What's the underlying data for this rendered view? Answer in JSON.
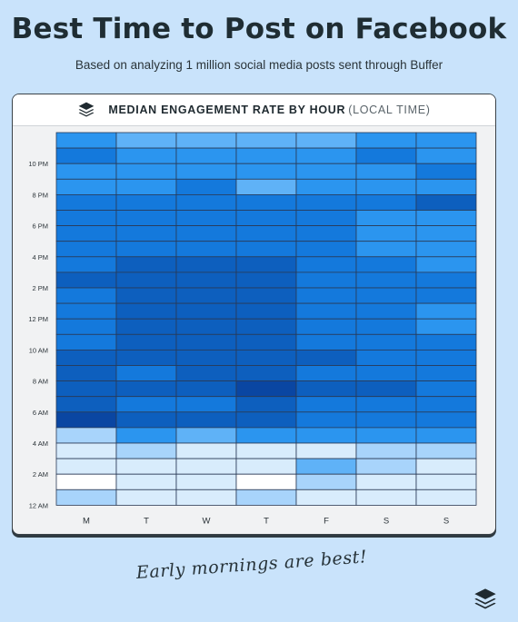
{
  "header": {
    "title": "Best Time to Post on Facebook",
    "subtitle": "Based on analyzing 1 million social media posts sent through Buffer"
  },
  "card": {
    "logo_icon": "buffer-stack-icon",
    "title_main": "MEDIAN ENGAGEMENT RATE BY HOUR",
    "title_sub": "(LOCAL TIME)"
  },
  "footer": {
    "caption": "Early mornings are best!",
    "logo_icon": "buffer-stack-icon"
  },
  "colors": {
    "background": "#c9e3fb",
    "scale": [
      "#ffffff",
      "#d8ecfc",
      "#a8d4fb",
      "#5fb2f7",
      "#2b95ef",
      "#1479dc",
      "#0d5fbe",
      "#0a46a2"
    ]
  },
  "chart_data": {
    "type": "heatmap",
    "title": "MEDIAN ENGAGEMENT RATE BY HOUR (LOCAL TIME)",
    "x_labels": [
      "M",
      "T",
      "W",
      "T",
      "F",
      "S",
      "S"
    ],
    "y_tick_labels": [
      {
        "hour": 22,
        "label": "10 PM"
      },
      {
        "hour": 20,
        "label": "8 PM"
      },
      {
        "hour": 18,
        "label": "6 PM"
      },
      {
        "hour": 16,
        "label": "4 PM"
      },
      {
        "hour": 14,
        "label": "2 PM"
      },
      {
        "hour": 12,
        "label": "12 PM"
      },
      {
        "hour": 10,
        "label": "10 AM"
      },
      {
        "hour": 8,
        "label": "8 AM"
      },
      {
        "hour": 6,
        "label": "6 AM"
      },
      {
        "hour": 4,
        "label": "4 AM"
      },
      {
        "hour": 2,
        "label": "2 AM"
      },
      {
        "hour": 0,
        "label": "12 AM"
      }
    ],
    "hours_top_to_bottom": [
      23,
      22,
      21,
      20,
      19,
      18,
      17,
      16,
      15,
      14,
      13,
      12,
      11,
      10,
      9,
      8,
      7,
      6,
      5,
      4,
      3,
      2,
      1,
      0
    ],
    "intensity_scale": "0 = lowest engagement (white), 7 = highest (dark blue)",
    "values": [
      [
        4,
        3,
        3,
        3,
        3,
        4,
        4
      ],
      [
        5,
        4,
        4,
        4,
        4,
        5,
        4
      ],
      [
        4,
        4,
        4,
        4,
        4,
        4,
        5
      ],
      [
        4,
        4,
        5,
        3,
        4,
        4,
        4
      ],
      [
        5,
        5,
        5,
        5,
        5,
        5,
        6
      ],
      [
        5,
        5,
        5,
        5,
        5,
        4,
        4
      ],
      [
        5,
        5,
        5,
        5,
        5,
        4,
        4
      ],
      [
        5,
        5,
        5,
        5,
        5,
        4,
        4
      ],
      [
        5,
        6,
        6,
        6,
        5,
        5,
        4
      ],
      [
        6,
        6,
        6,
        6,
        5,
        5,
        5
      ],
      [
        5,
        6,
        6,
        6,
        5,
        5,
        5
      ],
      [
        5,
        6,
        6,
        6,
        5,
        5,
        4
      ],
      [
        5,
        6,
        6,
        6,
        5,
        5,
        4
      ],
      [
        5,
        6,
        6,
        6,
        5,
        5,
        5
      ],
      [
        6,
        6,
        6,
        6,
        6,
        5,
        5
      ],
      [
        6,
        5,
        6,
        6,
        5,
        5,
        5
      ],
      [
        6,
        6,
        6,
        7,
        6,
        6,
        5
      ],
      [
        6,
        5,
        5,
        6,
        5,
        5,
        5
      ],
      [
        7,
        6,
        6,
        6,
        5,
        5,
        5
      ],
      [
        2,
        4,
        3,
        4,
        4,
        4,
        4
      ],
      [
        1,
        2,
        1,
        1,
        1,
        2,
        2
      ],
      [
        1,
        1,
        1,
        1,
        3,
        2,
        1
      ],
      [
        0,
        1,
        1,
        0,
        2,
        1,
        1
      ],
      [
        2,
        1,
        1,
        2,
        1,
        1,
        1
      ]
    ]
  }
}
